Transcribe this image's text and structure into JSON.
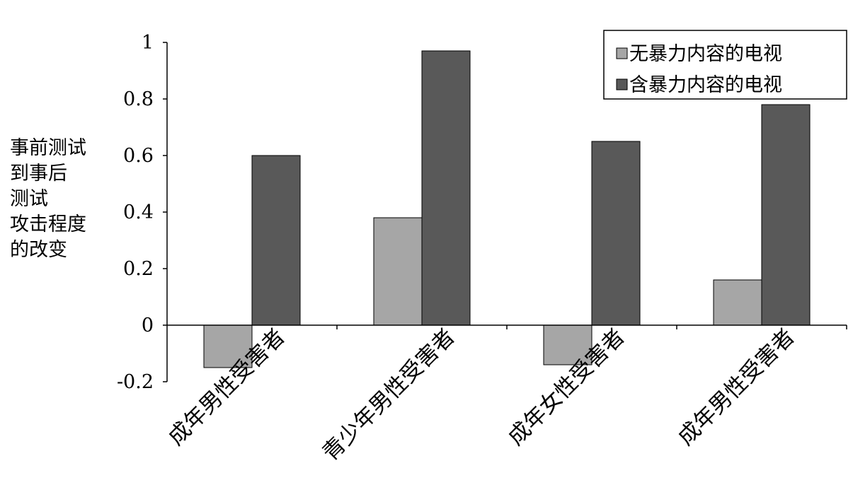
{
  "chart_data": {
    "type": "bar",
    "ylabel_lines": [
      "事前测试",
      "到事后",
      "测试",
      "攻击程度",
      "的改变"
    ],
    "yticks": [
      "1",
      "0.8",
      "0.6",
      "0.4",
      "0.2",
      "0",
      "-0.2"
    ],
    "ylim": [
      -0.2,
      1
    ],
    "categories": [
      "成年男性受害者",
      "青少年男性受害者",
      "成年女性受害者",
      "成年男性受害者"
    ],
    "series": [
      {
        "name": "无暴力内容的电视",
        "color": "#a6a6a6",
        "values": [
          -0.15,
          0.38,
          -0.14,
          0.16
        ]
      },
      {
        "name": "含暴力内容的电视",
        "color": "#595959",
        "values": [
          0.6,
          0.97,
          0.65,
          0.78
        ]
      }
    ],
    "legend_position": "top-right",
    "grid": false
  }
}
